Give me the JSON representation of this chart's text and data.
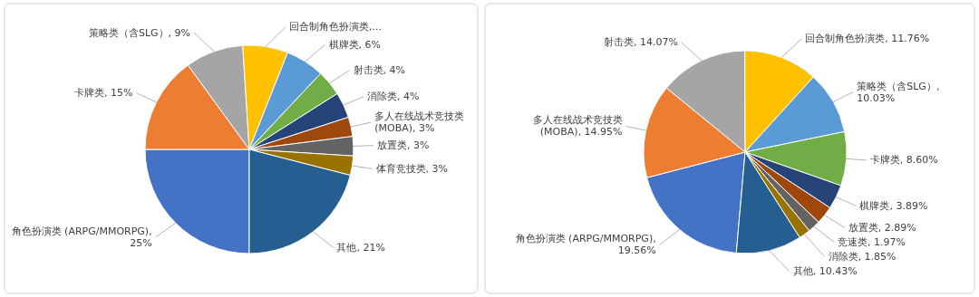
{
  "chart_data": [
    {
      "type": "pie",
      "categories": [
        "角色扮演类 (ARPG/MMORPG)",
        "卡牌类",
        "策略类（含SLG）",
        "回合制角色扮演类",
        "棋牌类",
        "射击类",
        "消除类",
        "多人在线战术竞技类 (MOBA)",
        "放置类",
        "体育竞技类",
        "其他"
      ],
      "values": [
        25,
        15,
        9,
        7,
        6,
        4,
        4,
        3,
        3,
        3,
        21
      ],
      "value_labels": [
        ", 25%",
        ", 15%",
        ", 9%",
        ",...",
        ", 6%",
        ", 4%",
        ", 4%",
        ", 3%",
        ", 3%",
        ", 3%",
        ", 21%"
      ],
      "colors": [
        "#4472c4",
        "#ed7d31",
        "#a5a5a5",
        "#ffc000",
        "#5b9bd5",
        "#70ad47",
        "#264478",
        "#9e480e",
        "#636363",
        "#997300",
        "#255e91"
      ]
    },
    {
      "type": "pie",
      "categories": [
        "角色扮演类 (ARPG/MMORPG)",
        "多人在线战术竞技类 (MOBA)",
        "射击类",
        "回合制角色扮演类",
        "策略类（含SLG）",
        "卡牌类",
        "棋牌类",
        "放置类",
        "竞速类",
        "消除类",
        "其他"
      ],
      "values": [
        19.56,
        14.95,
        14.07,
        11.76,
        10.03,
        8.6,
        3.89,
        2.89,
        1.97,
        1.85,
        10.43
      ],
      "value_labels": [
        ", 19.56%",
        ", 14.95%",
        ", 14.07%",
        ", 11.76%",
        ", 10.03%",
        ", 8.60%",
        ", 3.89%",
        ", 2.89%",
        ", 1.97%",
        ", 1.85%",
        ", 10.43%"
      ],
      "colors": [
        "#4472c4",
        "#ed7d31",
        "#a5a5a5",
        "#ffc000",
        "#5b9bd5",
        "#70ad47",
        "#264478",
        "#9e480e",
        "#636363",
        "#997300",
        "#255e91"
      ]
    }
  ]
}
